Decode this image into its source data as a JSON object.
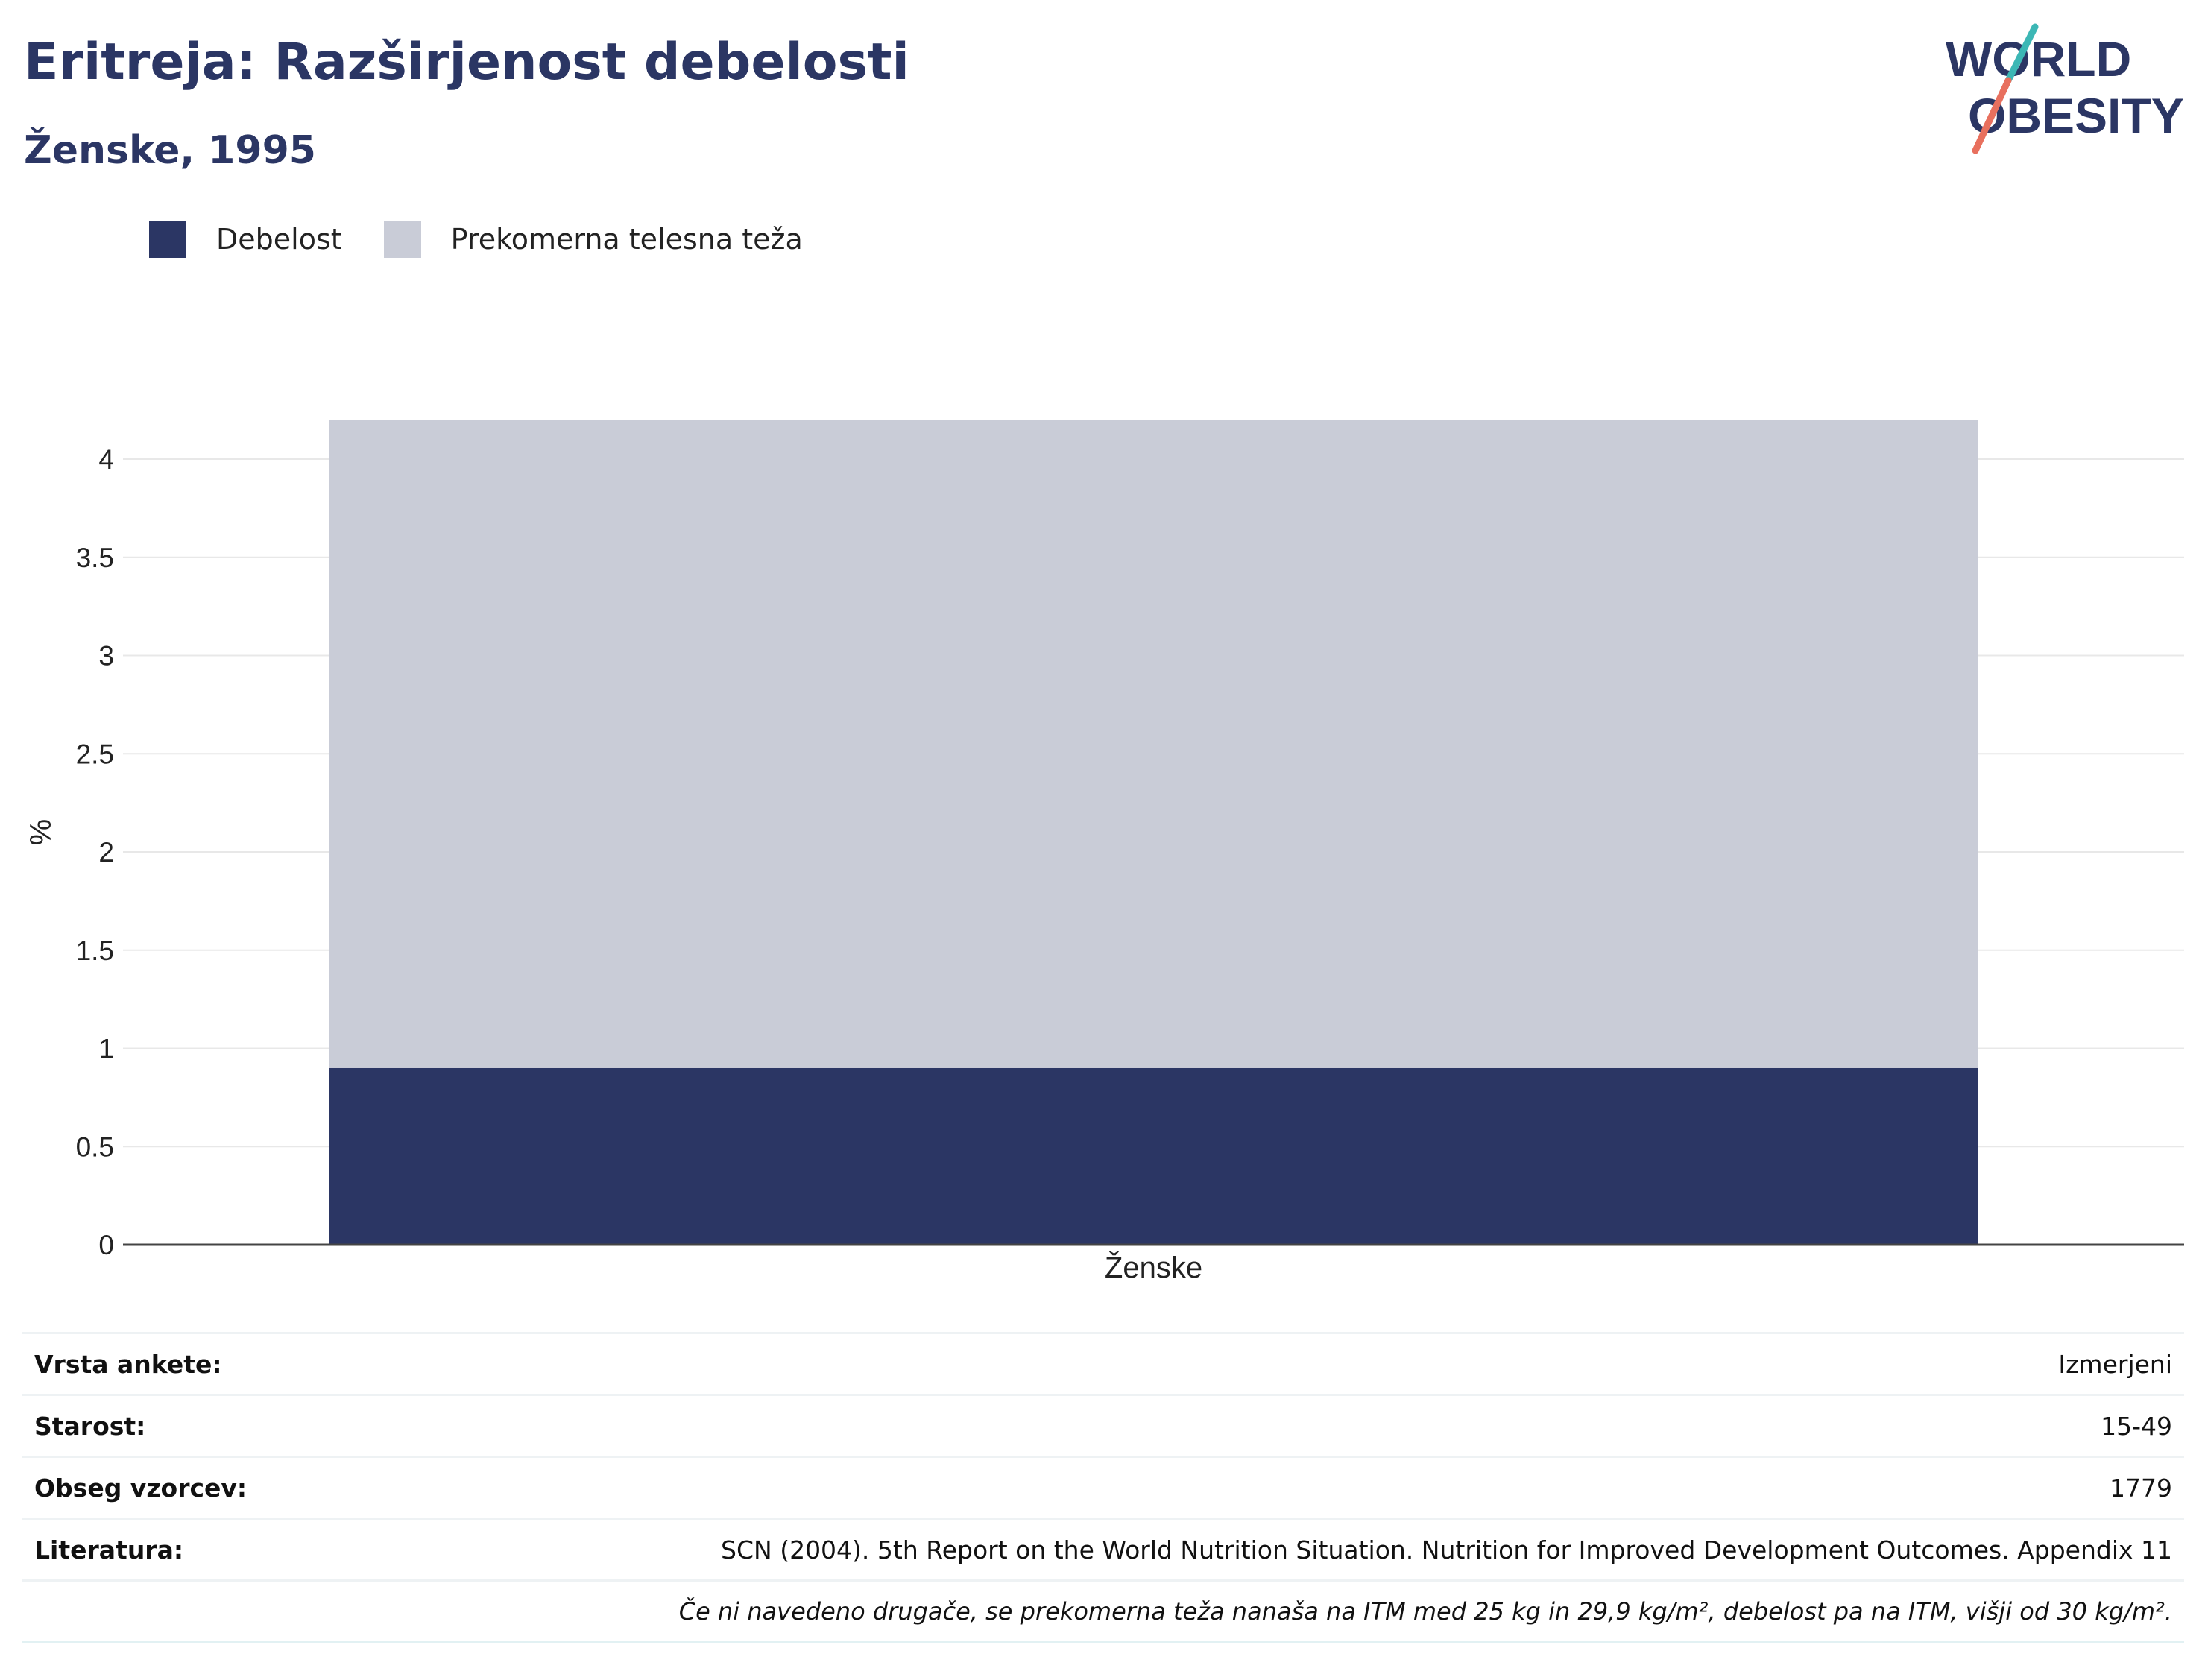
{
  "header": {
    "title": "Eritreja: Razširjenost debelosti",
    "subtitle": "Ženske, 1995"
  },
  "logo": {
    "line1": "WORLD",
    "line2": "OBESITY",
    "colors": {
      "text": "#2b3664",
      "slash_top": "#3cb7b5",
      "slash_bottom": "#e8705e"
    }
  },
  "legend": [
    {
      "label": "Debelost",
      "color": "#2b3664"
    },
    {
      "label": "Prekomerna telesna teža",
      "color": "#c9ccd7"
    }
  ],
  "chart_data": {
    "type": "bar",
    "stacked": true,
    "categories": [
      "Ženske"
    ],
    "series": [
      {
        "name": "Debelost",
        "values": [
          0.9
        ],
        "color": "#2b3664"
      },
      {
        "name": "Prekomerna telesna teža",
        "values": [
          3.3
        ],
        "color": "#c9ccd7"
      }
    ],
    "ylabel": "%",
    "ylim": [
      0,
      4.2
    ],
    "yticks": [
      0,
      0.5,
      1,
      1.5,
      2,
      2.5,
      3,
      3.5,
      4
    ],
    "ytick_labels": [
      "0",
      "0.5",
      "1",
      "1.5",
      "2",
      "2.5",
      "3",
      "3.5",
      "4"
    ],
    "grid": true,
    "legend_position": "top-left"
  },
  "info": {
    "rows": [
      {
        "label": "Vrsta ankete:",
        "value": "Izmerjeni"
      },
      {
        "label": "Starost:",
        "value": "15-49"
      },
      {
        "label": "Obseg vzorcev:",
        "value": "1779"
      },
      {
        "label": "Literatura:",
        "value": "SCN (2004). 5th Report on the World Nutrition Situation. Nutrition for Improved Development Outcomes. Appendix 11"
      }
    ],
    "note": "Če ni navedeno drugače, se prekomerna teža nanaša na ITM med 25 kg in 29,9 kg/m², debelost pa na ITM, višji od 30 kg/m²."
  }
}
